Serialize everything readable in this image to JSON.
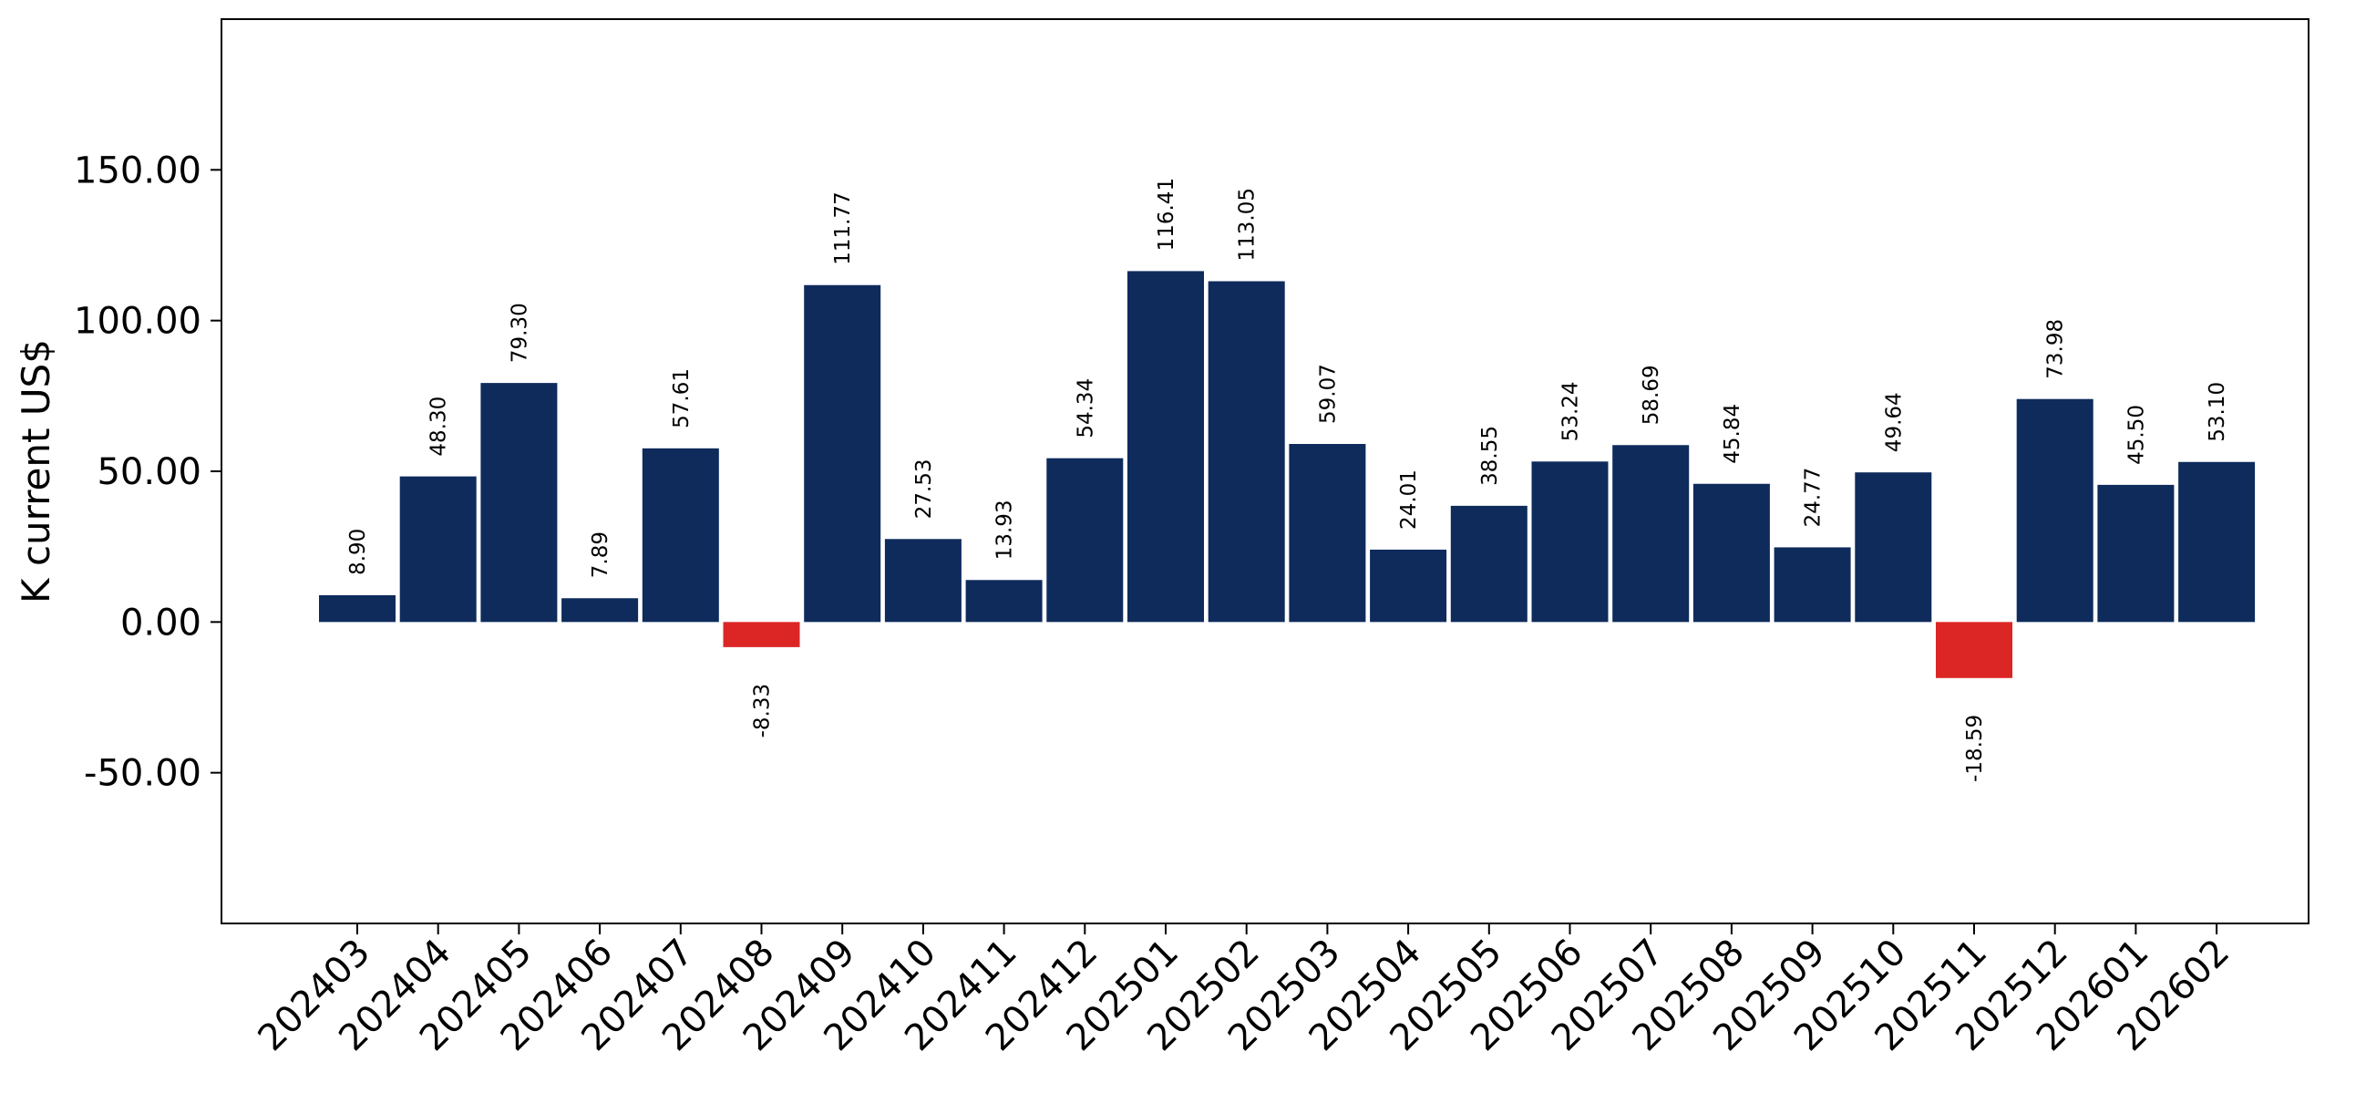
{
  "chart_data": {
    "type": "bar",
    "title": "",
    "xlabel": "",
    "ylabel": "K current US$",
    "ylim": [
      -100,
      200
    ],
    "yticks": [
      -50,
      0,
      50,
      100,
      150
    ],
    "ytick_labels": [
      "-50.00",
      "0.00",
      "50.00",
      "100.00",
      "150.00"
    ],
    "grid": false,
    "legend": "none",
    "colors": {
      "positive": "#0e2b5c",
      "negative": "#dc2626",
      "axis": "#000000"
    },
    "categories": [
      "202403",
      "202404",
      "202405",
      "202406",
      "202407",
      "202408",
      "202409",
      "202410",
      "202411",
      "202412",
      "202501",
      "202502",
      "202503",
      "202504",
      "202505",
      "202506",
      "202507",
      "202508",
      "202509",
      "202510",
      "202511",
      "202512",
      "202601",
      "202602"
    ],
    "values": [
      8.9,
      48.3,
      79.3,
      7.89,
      57.61,
      -8.33,
      111.77,
      27.53,
      13.93,
      54.34,
      116.41,
      113.05,
      59.07,
      24.01,
      38.55,
      53.24,
      58.69,
      45.84,
      24.77,
      49.64,
      -18.59,
      73.98,
      45.5,
      53.1
    ],
    "value_labels": [
      "8.90",
      "48.30",
      "79.30",
      "7.89",
      "57.61",
      "-8.33",
      "111.77",
      "27.53",
      "13.93",
      "54.34",
      "116.41",
      "113.05",
      "59.07",
      "24.01",
      "38.55",
      "53.24",
      "58.69",
      "45.84",
      "24.77",
      "49.64",
      "-18.59",
      "73.98",
      "45.50",
      "53.10"
    ]
  }
}
